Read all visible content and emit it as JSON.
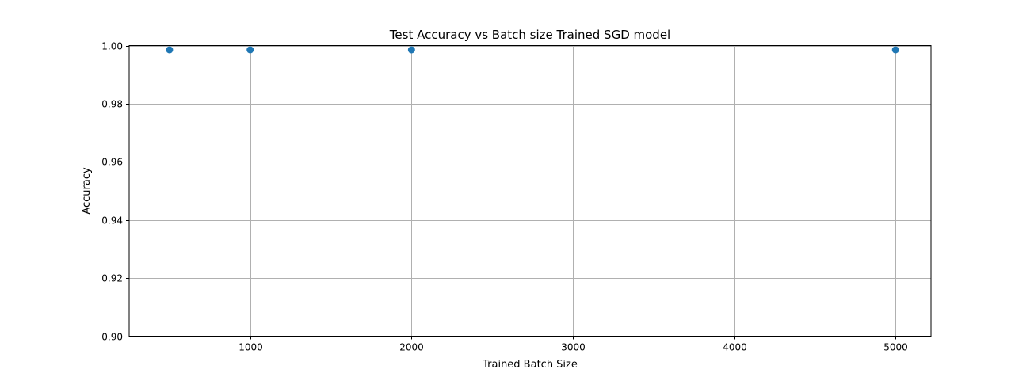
{
  "chart_data": {
    "type": "scatter",
    "title": "Test Accuracy vs Batch size Trained SGD model",
    "xlabel": "Trained Batch Size",
    "ylabel": "Accuracy",
    "xlim": [
      250,
      5220
    ],
    "ylim": [
      0.9,
      1.0
    ],
    "xticks": [
      1000,
      2000,
      3000,
      4000,
      5000
    ],
    "yticks": [
      0.9,
      0.92,
      0.94,
      0.96,
      0.98,
      1.0
    ],
    "xtick_labels": [
      "1000",
      "2000",
      "3000",
      "4000",
      "5000"
    ],
    "ytick_labels": [
      "0.90",
      "0.92",
      "0.94",
      "0.96",
      "0.98",
      "1.00"
    ],
    "grid": true,
    "marker_color": "#1f77b4",
    "series": [
      {
        "x": [
          500,
          1000,
          2000,
          5000
        ],
        "y": [
          0.9985,
          0.9985,
          0.9985,
          0.9985
        ]
      }
    ]
  }
}
